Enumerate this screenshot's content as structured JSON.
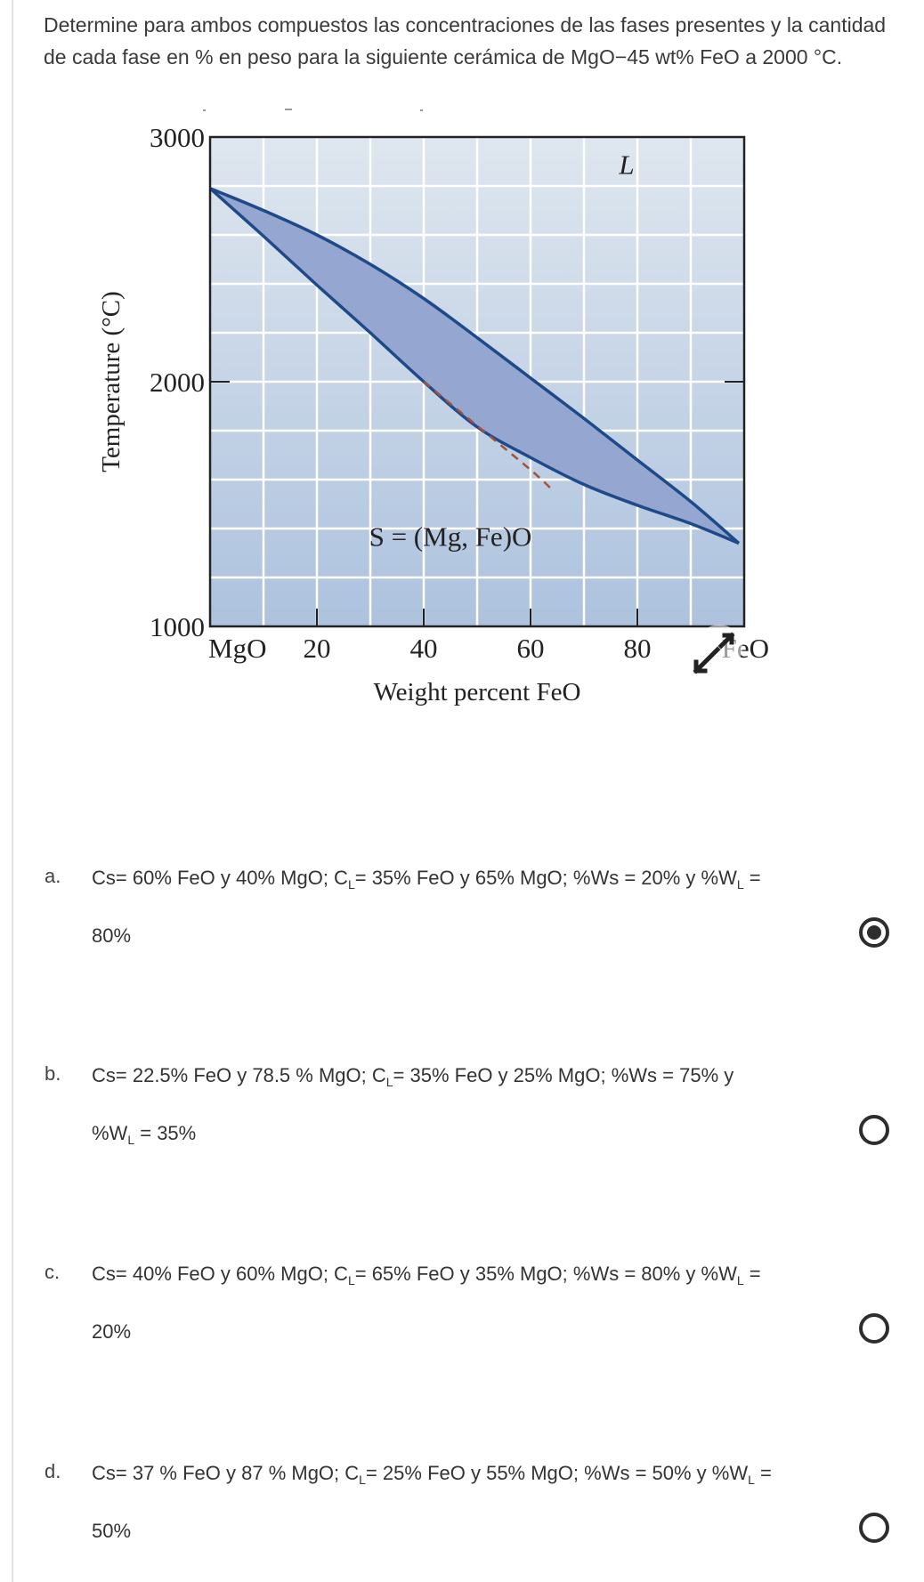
{
  "question": {
    "text": "Determine para ambos compuestos las concentraciones de las fases presentes y la cantidad de cada fase en % en peso para la siguiente cerámica de MgO−45 wt% FeO a 2000 °C."
  },
  "chart_data": {
    "type": "area",
    "title": "",
    "xlabel": "Weight percent FeO",
    "ylabel": "Temperature (°C)",
    "xlim": [
      0,
      100
    ],
    "ylim": [
      1000,
      3000
    ],
    "x_ticks": [
      {
        "value": 0,
        "label": "MgO"
      },
      {
        "value": 20,
        "label": "20"
      },
      {
        "value": 40,
        "label": "40"
      },
      {
        "value": 60,
        "label": "60"
      },
      {
        "value": 80,
        "label": "80"
      },
      {
        "value": 100,
        "label": "FeO"
      }
    ],
    "y_ticks": [
      {
        "value": 1000,
        "label": "1000"
      },
      {
        "value": 2000,
        "label": "2000"
      },
      {
        "value": 3000,
        "label": "3000"
      }
    ],
    "grid": true,
    "grid_x_step": 10,
    "grid_y_step": 200,
    "series": [
      {
        "name": "Liquidus",
        "x": [
          0,
          10,
          20,
          30,
          40,
          50,
          60,
          70,
          80,
          90,
          99
        ],
        "y": [
          2790,
          2700,
          2600,
          2480,
          2340,
          2180,
          2015,
          1850,
          1680,
          1510,
          1340
        ]
      },
      {
        "name": "Solidus",
        "x": [
          0,
          10,
          20,
          30,
          40,
          50,
          60,
          70,
          80,
          90,
          99
        ],
        "y": [
          2790,
          2595,
          2395,
          2200,
          2000,
          1815,
          1690,
          1580,
          1495,
          1420,
          1340
        ]
      },
      {
        "name": "Dashed boundary",
        "style": "dashed",
        "x": [
          40,
          50,
          60,
          64
        ],
        "y": [
          2000,
          1820,
          1640,
          1560
        ]
      }
    ],
    "annotations": [
      {
        "text": "L",
        "x": 78,
        "y": 2850
      },
      {
        "text": "S = (Mg, Fe)O",
        "x": 45,
        "y": 1330
      }
    ],
    "colors": {
      "plot_bg_top": "#dfe7ef",
      "plot_bg_bottom": "#adc2de",
      "two_phase_fill": "#95a7d0",
      "curve": "#1f4a8a",
      "dashed": "#a0523d",
      "grid": "#ffffff"
    }
  },
  "expand_icon": "expand-arrows-icon",
  "options": [
    {
      "letter": "a.",
      "line1_parts": [
        "Cs= 60% FeO y 40% MgO; C",
        "L",
        "= 35% FeO y 65% MgO; %Ws = 20% y %W",
        "L",
        " ="
      ],
      "line2_parts": [
        "80%",
        "",
        ""
      ],
      "checked": true
    },
    {
      "letter": "b.",
      "line1_parts": [
        "Cs= 22.5% FeO y 78.5 % MgO; C",
        "L",
        "= 35% FeO y 25% MgO; %Ws = 75% y",
        "",
        ""
      ],
      "line2_parts": [
        "%W",
        "L",
        " = 35%"
      ],
      "checked": false
    },
    {
      "letter": "c.",
      "line1_parts": [
        "Cs= 40% FeO y 60% MgO; C",
        "L",
        "= 65% FeO y 35% MgO; %Ws = 80% y %W",
        "L",
        " ="
      ],
      "line2_parts": [
        "20%",
        "",
        ""
      ],
      "checked": false
    },
    {
      "letter": "d.",
      "line1_parts": [
        "Cs= 37 % FeO y 87 % MgO; C",
        "L",
        "= 25% FeO y 55% MgO; %Ws = 50% y %W",
        "L",
        " ="
      ],
      "line2_parts": [
        "50%",
        "",
        ""
      ],
      "checked": false
    }
  ]
}
